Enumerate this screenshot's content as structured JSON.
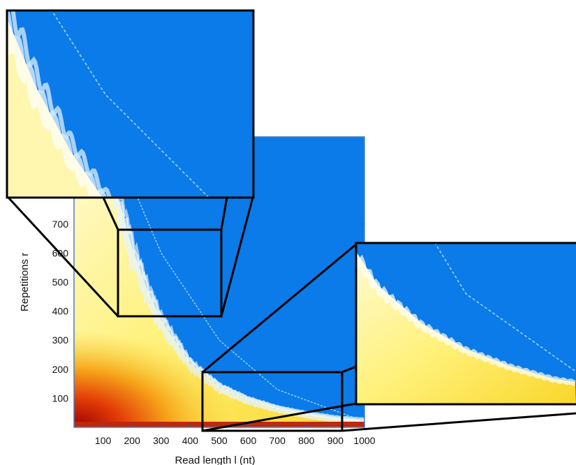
{
  "chart_data": {
    "type": "heatmap",
    "xlabel": "Read length l (nt)",
    "ylabel": "Repetitions r",
    "xlim": [
      0,
      1000
    ],
    "ylim": [
      0,
      1000
    ],
    "x_ticks": [
      100,
      200,
      300,
      400,
      500,
      600,
      700,
      800,
      900,
      1000
    ],
    "y_ticks": [
      100,
      200,
      300,
      400,
      500,
      600,
      700
    ],
    "x_tick_labels": [
      "100",
      "200",
      "300",
      "400",
      "500",
      "600",
      "700",
      "800",
      "900",
      "1000"
    ],
    "y_tick_labels": [
      "100",
      "200",
      "300",
      "400",
      "500",
      "600",
      "700"
    ],
    "grid": false,
    "legend": "none",
    "colors": {
      "background_region": "#0a7be8",
      "boundary_noise": "#ffffff",
      "low_region": "#fff59a",
      "mid_region": "#f7c51d",
      "high_region": "#b30000",
      "frame": "#000000"
    },
    "boundary_curve": {
      "description_points": [
        [
          80,
          1000
        ],
        [
          150,
          800
        ],
        [
          200,
          620
        ],
        [
          250,
          480
        ],
        [
          300,
          370
        ],
        [
          400,
          220
        ],
        [
          500,
          140
        ],
        [
          600,
          95
        ],
        [
          700,
          65
        ],
        [
          800,
          45
        ],
        [
          900,
          30
        ],
        [
          1000,
          22
        ]
      ]
    },
    "faint_diagonal_line": [
      [
        130,
        1000
      ],
      [
        300,
        600
      ],
      [
        500,
        300
      ],
      [
        700,
        130
      ],
      [
        1000,
        20
      ]
    ],
    "zoom_boxes": [
      {
        "name": "zoom-top-left",
        "x_range": [
          160,
          510
        ],
        "y_range": [
          380,
          780
        ]
      },
      {
        "name": "zoom-bottom-right",
        "x_range": [
          450,
          950
        ],
        "y_range": [
          0,
          190
        ]
      }
    ]
  }
}
